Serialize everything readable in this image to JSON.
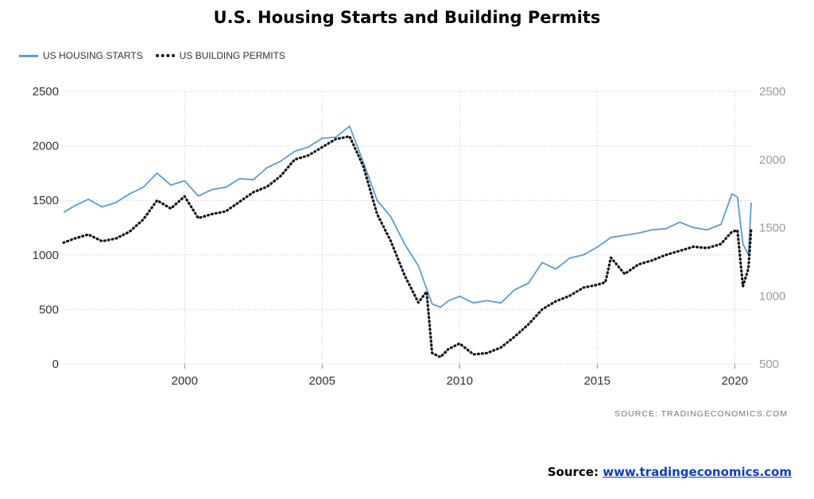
{
  "chart_data": {
    "type": "line",
    "title": "U.S. Housing Starts and Building Permits",
    "x_ticks": [
      2000,
      2005,
      2010,
      2015,
      2020
    ],
    "xlim": [
      1995.6,
      2020.6
    ],
    "y_left": {
      "ticks": [
        0,
        500,
        1000,
        1500,
        2000,
        2500
      ],
      "ylim": [
        0,
        2500
      ]
    },
    "y_right": {
      "ticks": [
        500,
        1000,
        1500,
        2000,
        2500
      ],
      "ylim": [
        500,
        2500
      ]
    },
    "grid": true,
    "legend_position": "top-left",
    "series": [
      {
        "name": "US HOUSING STARTS",
        "axis": "left",
        "style": "solid",
        "color": "#5b9bd5",
        "x": [
          1995.6,
          1996.0,
          1996.5,
          1997.0,
          1997.5,
          1998.0,
          1998.5,
          1999.0,
          1999.5,
          2000.0,
          2000.5,
          2001.0,
          2001.5,
          2002.0,
          2002.5,
          2003.0,
          2003.5,
          2004.0,
          2004.5,
          2005.0,
          2005.5,
          2006.0,
          2006.5,
          2007.0,
          2007.5,
          2008.0,
          2008.5,
          2009.0,
          2009.3,
          2009.6,
          2010.0,
          2010.5,
          2011.0,
          2011.5,
          2012.0,
          2012.5,
          2013.0,
          2013.5,
          2014.0,
          2014.5,
          2015.0,
          2015.5,
          2016.0,
          2016.5,
          2017.0,
          2017.5,
          2018.0,
          2018.5,
          2019.0,
          2019.5,
          2019.9,
          2020.1,
          2020.3,
          2020.5,
          2020.6
        ],
        "values": [
          1390,
          1450,
          1510,
          1440,
          1480,
          1560,
          1620,
          1750,
          1640,
          1680,
          1540,
          1600,
          1620,
          1700,
          1690,
          1800,
          1860,
          1950,
          1990,
          2070,
          2080,
          2180,
          1850,
          1500,
          1350,
          1100,
          900,
          550,
          520,
          580,
          620,
          560,
          580,
          560,
          680,
          740,
          930,
          870,
          970,
          1000,
          1070,
          1160,
          1180,
          1200,
          1230,
          1240,
          1300,
          1250,
          1230,
          1280,
          1560,
          1530,
          1100,
          1000,
          1480
        ]
      },
      {
        "name": "US BUILDING PERMITS",
        "axis": "right",
        "style": "dotted",
        "color": "#111111",
        "x": [
          1995.6,
          1996.0,
          1996.5,
          1997.0,
          1997.5,
          1998.0,
          1998.5,
          1999.0,
          1999.5,
          2000.0,
          2000.5,
          2001.0,
          2001.5,
          2002.0,
          2002.5,
          2003.0,
          2003.5,
          2004.0,
          2004.5,
          2005.0,
          2005.5,
          2006.0,
          2006.5,
          2007.0,
          2007.5,
          2008.0,
          2008.5,
          2008.8,
          2009.0,
          2009.3,
          2009.6,
          2010.0,
          2010.5,
          2011.0,
          2011.5,
          2012.0,
          2012.5,
          2013.0,
          2013.5,
          2014.0,
          2014.5,
          2015.0,
          2015.3,
          2015.5,
          2016.0,
          2016.5,
          2017.0,
          2017.5,
          2018.0,
          2018.5,
          2019.0,
          2019.5,
          2019.9,
          2020.1,
          2020.3,
          2020.5,
          2020.6
        ],
        "values": [
          1390,
          1420,
          1450,
          1400,
          1420,
          1470,
          1560,
          1700,
          1640,
          1730,
          1570,
          1600,
          1620,
          1690,
          1760,
          1800,
          1880,
          2000,
          2030,
          2090,
          2150,
          2170,
          1950,
          1600,
          1400,
          1150,
          950,
          1030,
          580,
          550,
          610,
          650,
          570,
          580,
          620,
          700,
          790,
          900,
          960,
          1000,
          1060,
          1080,
          1100,
          1280,
          1160,
          1230,
          1260,
          1300,
          1330,
          1360,
          1350,
          1380,
          1470,
          1480,
          1070,
          1200,
          1500
        ]
      }
    ],
    "source_note": "SOURCE:  TRADINGECONOMICS.COM"
  },
  "footer": {
    "label": "Source:",
    "link_text": "www.tradingeconomics.com"
  }
}
